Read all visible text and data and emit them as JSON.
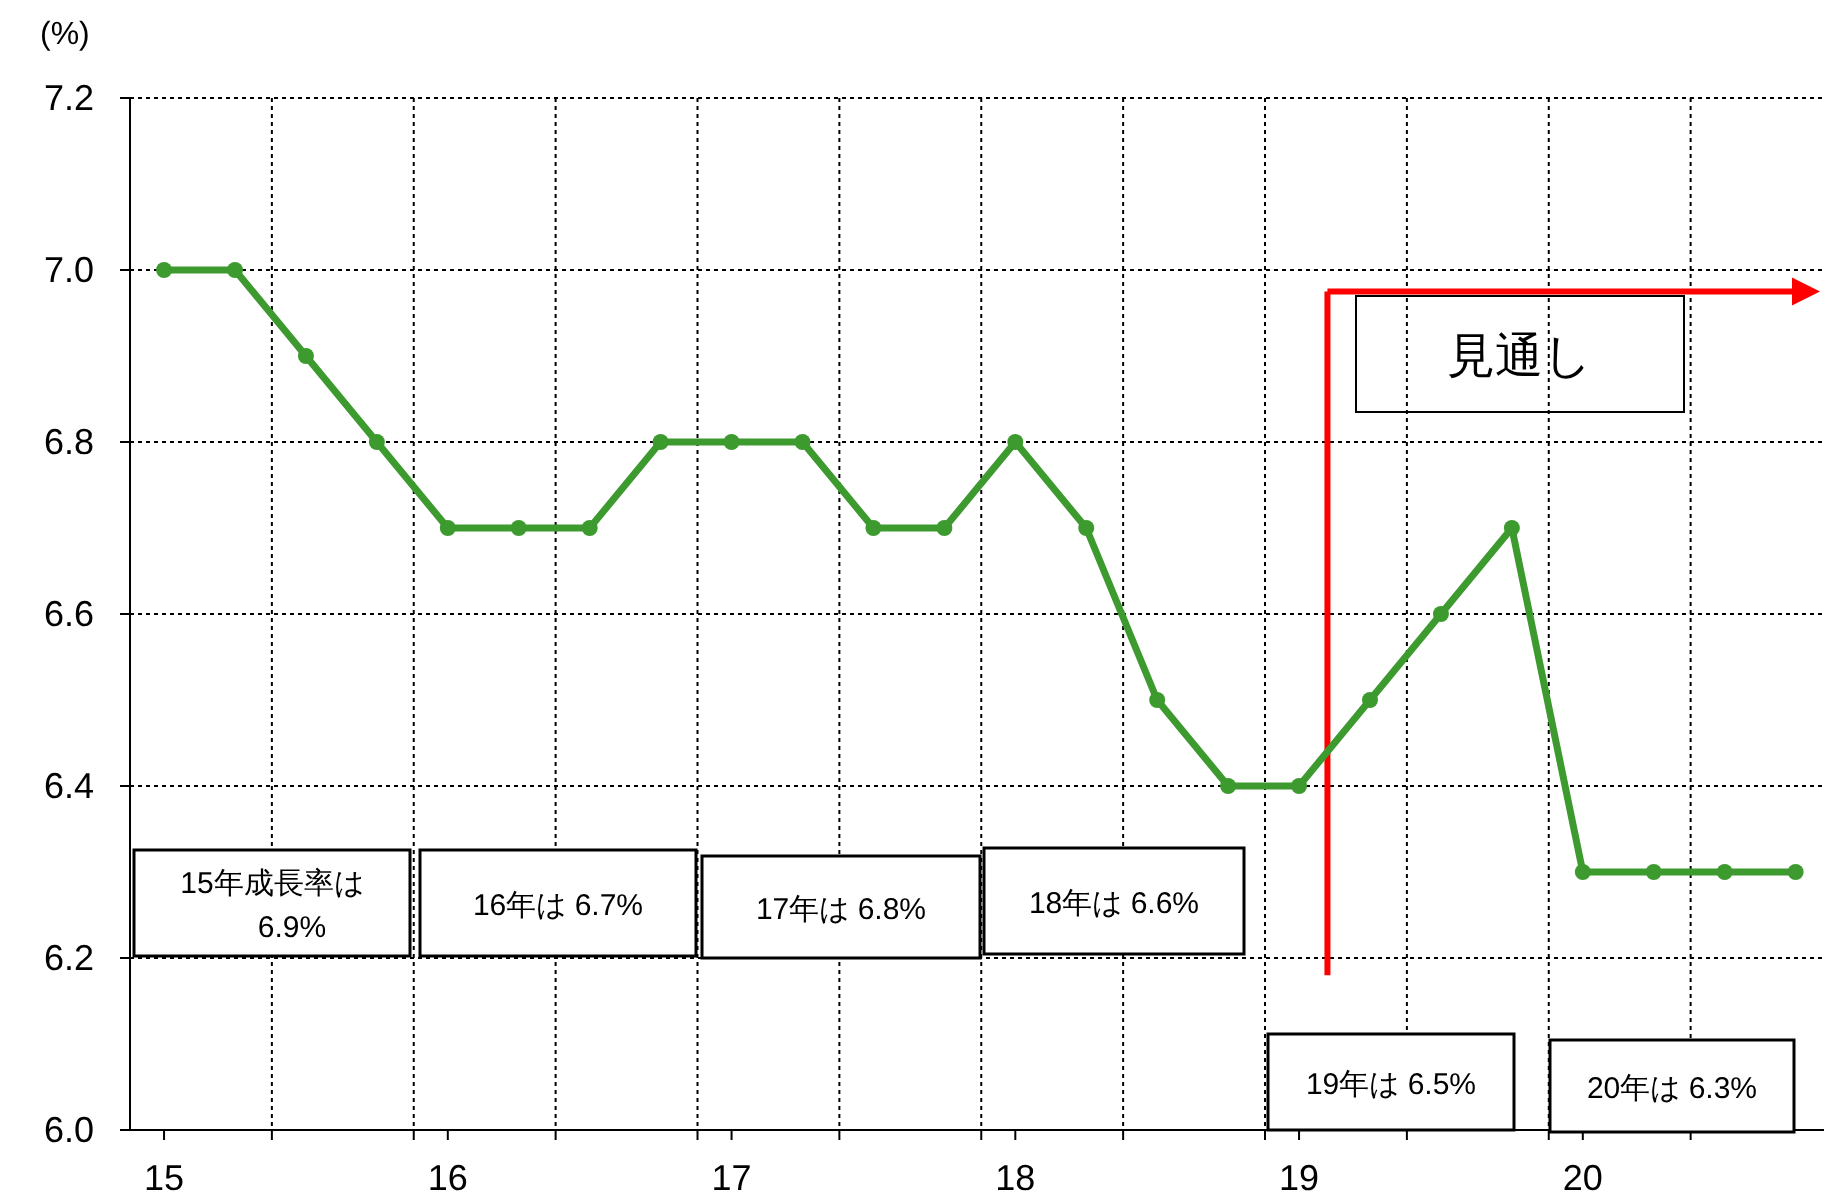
{
  "chart_data": {
    "type": "line",
    "ylabel": "(%)",
    "x": [
      15,
      15.25,
      15.5,
      15.75,
      16,
      16.25,
      16.5,
      16.75,
      17,
      17.25,
      17.5,
      17.75,
      18,
      18.25,
      18.5,
      18.75,
      19,
      19.25,
      19.5,
      19.75,
      20,
      20.25,
      20.5,
      20.75
    ],
    "series": [
      {
        "color": "#3c9a2e",
        "values": [
          7.0,
          7.0,
          6.9,
          6.8,
          6.7,
          6.7,
          6.7,
          6.8,
          6.8,
          6.8,
          6.7,
          6.7,
          6.8,
          6.7,
          6.5,
          6.4,
          6.4,
          6.5,
          6.6,
          6.7,
          6.3,
          6.3,
          6.3,
          6.3
        ]
      }
    ],
    "marker": "circle",
    "line_style": "solid",
    "grid": true,
    "xlim": [
      14.88,
      20.85
    ],
    "xticks": [
      15,
      16,
      17,
      18,
      19,
      20,
      {
        "value": 15.38,
        "label": null
      },
      {
        "value": 15.88,
        "label": null
      },
      {
        "value": 16.38,
        "label": null
      },
      {
        "value": 16.88,
        "label": null
      },
      {
        "value": 17.38,
        "label": null
      },
      {
        "value": 17.88,
        "label": null
      },
      {
        "value": 18.38,
        "label": null
      },
      {
        "value": 18.88,
        "label": null
      },
      {
        "value": 19.38,
        "label": null
      },
      {
        "value": 19.88,
        "label": null
      },
      {
        "value": 20.38,
        "label": null
      }
    ],
    "ylim": [
      6.0,
      7.2
    ],
    "yticks": [
      {
        "value": 6.0,
        "label": "6.0"
      },
      6.2,
      6.4,
      6.6,
      6.8,
      {
        "value": 7.0,
        "label": "7.0"
      },
      7.2
    ],
    "ref_lines": [
      {
        "axis": "x",
        "value": 19.1,
        "label": "見通し",
        "color": "#ff0000"
      }
    ],
    "annotations": [
      "15年成長率は\n6.9%",
      "16年は 6.7%",
      "17年は 6.8%",
      "18年は 6.6%",
      "19年は 6.5%",
      "20年は 6.3%"
    ]
  }
}
